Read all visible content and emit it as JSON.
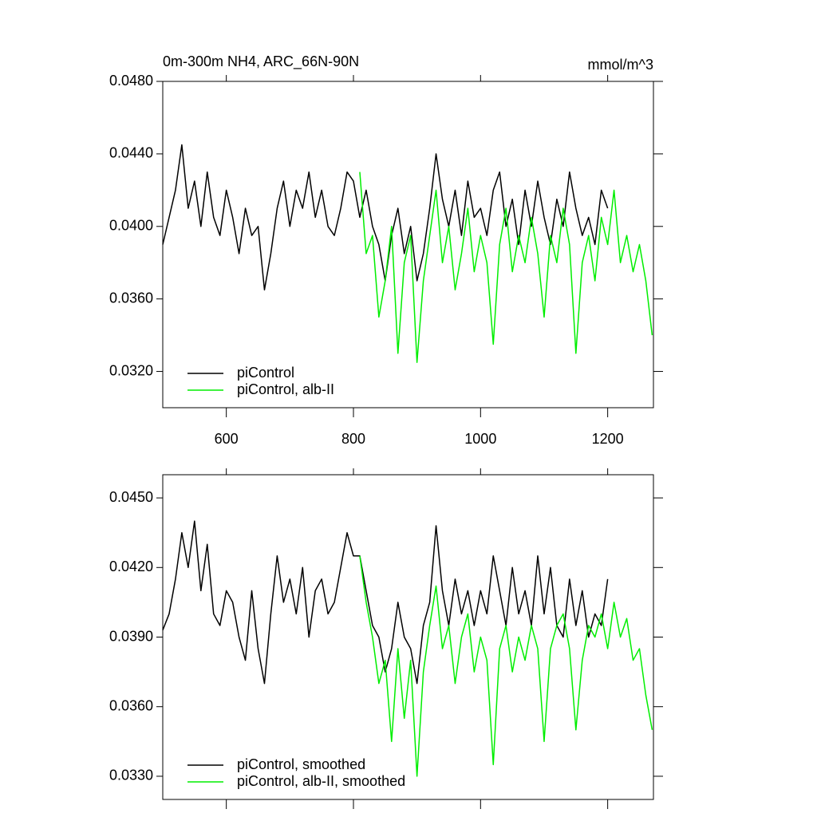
{
  "chart_data": [
    {
      "type": "line",
      "title": "0m-300m NH4, ARC_66N-90N",
      "units": "mmol/m^3",
      "xlim": [
        500,
        1272
      ],
      "xticks": [
        600,
        800,
        1000,
        1200
      ],
      "xtick_labels": true,
      "ylim": [
        0.03,
        0.048
      ],
      "yticks": [
        {
          "value": 0.032,
          "label": "0.0320"
        },
        {
          "value": 0.036,
          "label": "0.0360"
        },
        {
          "value": 0.04,
          "label": "0.0400"
        },
        {
          "value": 0.044,
          "label": "0.0440"
        },
        {
          "value": 0.048,
          "label": "0.0480"
        }
      ],
      "legend": "lower left",
      "series": [
        {
          "name": "piControl",
          "color": "#000000",
          "x": [
            500,
            510,
            520,
            530,
            540,
            550,
            560,
            570,
            580,
            590,
            600,
            610,
            620,
            630,
            640,
            650,
            660,
            670,
            680,
            690,
            700,
            710,
            720,
            730,
            740,
            750,
            760,
            770,
            780,
            790,
            800,
            810,
            820,
            830,
            840,
            850,
            860,
            870,
            880,
            890,
            900,
            910,
            920,
            930,
            940,
            950,
            960,
            970,
            980,
            990,
            1000,
            1010,
            1020,
            1030,
            1040,
            1050,
            1060,
            1070,
            1080,
            1090,
            1100,
            1110,
            1120,
            1130,
            1140,
            1150,
            1160,
            1170,
            1180,
            1190,
            1200
          ],
          "values": [
            0.039,
            0.0405,
            0.042,
            0.0445,
            0.041,
            0.0425,
            0.04,
            0.043,
            0.0405,
            0.0395,
            0.042,
            0.0405,
            0.0385,
            0.041,
            0.0395,
            0.04,
            0.0365,
            0.0385,
            0.041,
            0.0425,
            0.04,
            0.042,
            0.041,
            0.043,
            0.0405,
            0.042,
            0.04,
            0.0395,
            0.041,
            0.043,
            0.0425,
            0.0405,
            0.042,
            0.04,
            0.039,
            0.037,
            0.0395,
            0.041,
            0.0385,
            0.04,
            0.037,
            0.0385,
            0.041,
            0.044,
            0.0415,
            0.04,
            0.042,
            0.0395,
            0.0425,
            0.0405,
            0.041,
            0.0395,
            0.042,
            0.043,
            0.04,
            0.0415,
            0.039,
            0.042,
            0.04,
            0.0425,
            0.0405,
            0.039,
            0.0415,
            0.04,
            0.043,
            0.041,
            0.0395,
            0.0405,
            0.039,
            0.042,
            0.041
          ]
        },
        {
          "name": "piControl, alb-II",
          "color": "#00ee00",
          "x": [
            810,
            820,
            830,
            840,
            850,
            860,
            870,
            880,
            890,
            900,
            910,
            920,
            930,
            940,
            950,
            960,
            970,
            980,
            990,
            1000,
            1010,
            1020,
            1030,
            1040,
            1050,
            1060,
            1070,
            1080,
            1090,
            1100,
            1110,
            1120,
            1130,
            1140,
            1150,
            1160,
            1170,
            1180,
            1190,
            1200,
            1210,
            1220,
            1230,
            1240,
            1250,
            1260,
            1270
          ],
          "values": [
            0.043,
            0.0385,
            0.0395,
            0.035,
            0.037,
            0.04,
            0.033,
            0.038,
            0.0395,
            0.0325,
            0.037,
            0.0395,
            0.042,
            0.038,
            0.04,
            0.0365,
            0.0385,
            0.041,
            0.0375,
            0.0395,
            0.038,
            0.0335,
            0.039,
            0.041,
            0.0375,
            0.0395,
            0.038,
            0.0405,
            0.0385,
            0.035,
            0.0395,
            0.038,
            0.041,
            0.039,
            0.033,
            0.038,
            0.0395,
            0.037,
            0.0405,
            0.039,
            0.042,
            0.038,
            0.0395,
            0.0375,
            0.039,
            0.037,
            0.034
          ]
        }
      ]
    },
    {
      "type": "line",
      "xlim": [
        500,
        1272
      ],
      "xticks": [
        600,
        800,
        1000,
        1200
      ],
      "xtick_labels": false,
      "ylim": [
        0.032,
        0.046
      ],
      "yticks": [
        {
          "value": 0.033,
          "label": "0.0330"
        },
        {
          "value": 0.036,
          "label": "0.0360"
        },
        {
          "value": 0.039,
          "label": "0.0390"
        },
        {
          "value": 0.042,
          "label": "0.0420"
        },
        {
          "value": 0.045,
          "label": "0.0450"
        }
      ],
      "legend": "lower left",
      "series": [
        {
          "name": "piControl, smoothed",
          "color": "#000000",
          "x": [
            500,
            510,
            520,
            530,
            540,
            550,
            560,
            570,
            580,
            590,
            600,
            610,
            620,
            630,
            640,
            650,
            660,
            670,
            680,
            690,
            700,
            710,
            720,
            730,
            740,
            750,
            760,
            770,
            780,
            790,
            800,
            810,
            820,
            830,
            840,
            850,
            860,
            870,
            880,
            890,
            900,
            910,
            920,
            930,
            940,
            950,
            960,
            970,
            980,
            990,
            1000,
            1010,
            1020,
            1030,
            1040,
            1050,
            1060,
            1070,
            1080,
            1090,
            1100,
            1110,
            1120,
            1130,
            1140,
            1150,
            1160,
            1170,
            1180,
            1190,
            1200
          ],
          "values": [
            0.0393,
            0.04,
            0.0415,
            0.0435,
            0.042,
            0.044,
            0.041,
            0.043,
            0.04,
            0.0395,
            0.041,
            0.0405,
            0.039,
            0.038,
            0.041,
            0.0385,
            0.037,
            0.04,
            0.0425,
            0.0405,
            0.0415,
            0.04,
            0.042,
            0.039,
            0.041,
            0.0415,
            0.04,
            0.0405,
            0.042,
            0.0435,
            0.0425,
            0.0425,
            0.041,
            0.0395,
            0.039,
            0.0375,
            0.0385,
            0.0405,
            0.039,
            0.0385,
            0.037,
            0.0395,
            0.0405,
            0.0438,
            0.041,
            0.0395,
            0.0415,
            0.04,
            0.041,
            0.0395,
            0.041,
            0.04,
            0.0425,
            0.041,
            0.0395,
            0.042,
            0.04,
            0.041,
            0.0395,
            0.0425,
            0.04,
            0.042,
            0.0395,
            0.039,
            0.0415,
            0.0395,
            0.041,
            0.039,
            0.04,
            0.0395,
            0.0415
          ]
        },
        {
          "name": "piControl, alb-II, smoothed",
          "color": "#00ee00",
          "x": [
            810,
            820,
            830,
            840,
            850,
            860,
            870,
            880,
            890,
            900,
            910,
            920,
            930,
            940,
            950,
            960,
            970,
            980,
            990,
            1000,
            1010,
            1020,
            1030,
            1040,
            1050,
            1060,
            1070,
            1080,
            1090,
            1100,
            1110,
            1120,
            1130,
            1140,
            1150,
            1160,
            1170,
            1180,
            1190,
            1200,
            1210,
            1220,
            1230,
            1240,
            1250,
            1260,
            1270
          ],
          "values": [
            0.0425,
            0.0405,
            0.039,
            0.037,
            0.038,
            0.0345,
            0.0385,
            0.0355,
            0.038,
            0.033,
            0.0375,
            0.0395,
            0.0412,
            0.0385,
            0.0395,
            0.037,
            0.039,
            0.04,
            0.0375,
            0.039,
            0.038,
            0.0335,
            0.0385,
            0.0395,
            0.0375,
            0.039,
            0.038,
            0.0395,
            0.0385,
            0.0345,
            0.0385,
            0.0395,
            0.04,
            0.0385,
            0.035,
            0.038,
            0.0395,
            0.039,
            0.04,
            0.0385,
            0.0405,
            0.039,
            0.0398,
            0.038,
            0.0385,
            0.0365,
            0.035
          ]
        }
      ]
    }
  ]
}
